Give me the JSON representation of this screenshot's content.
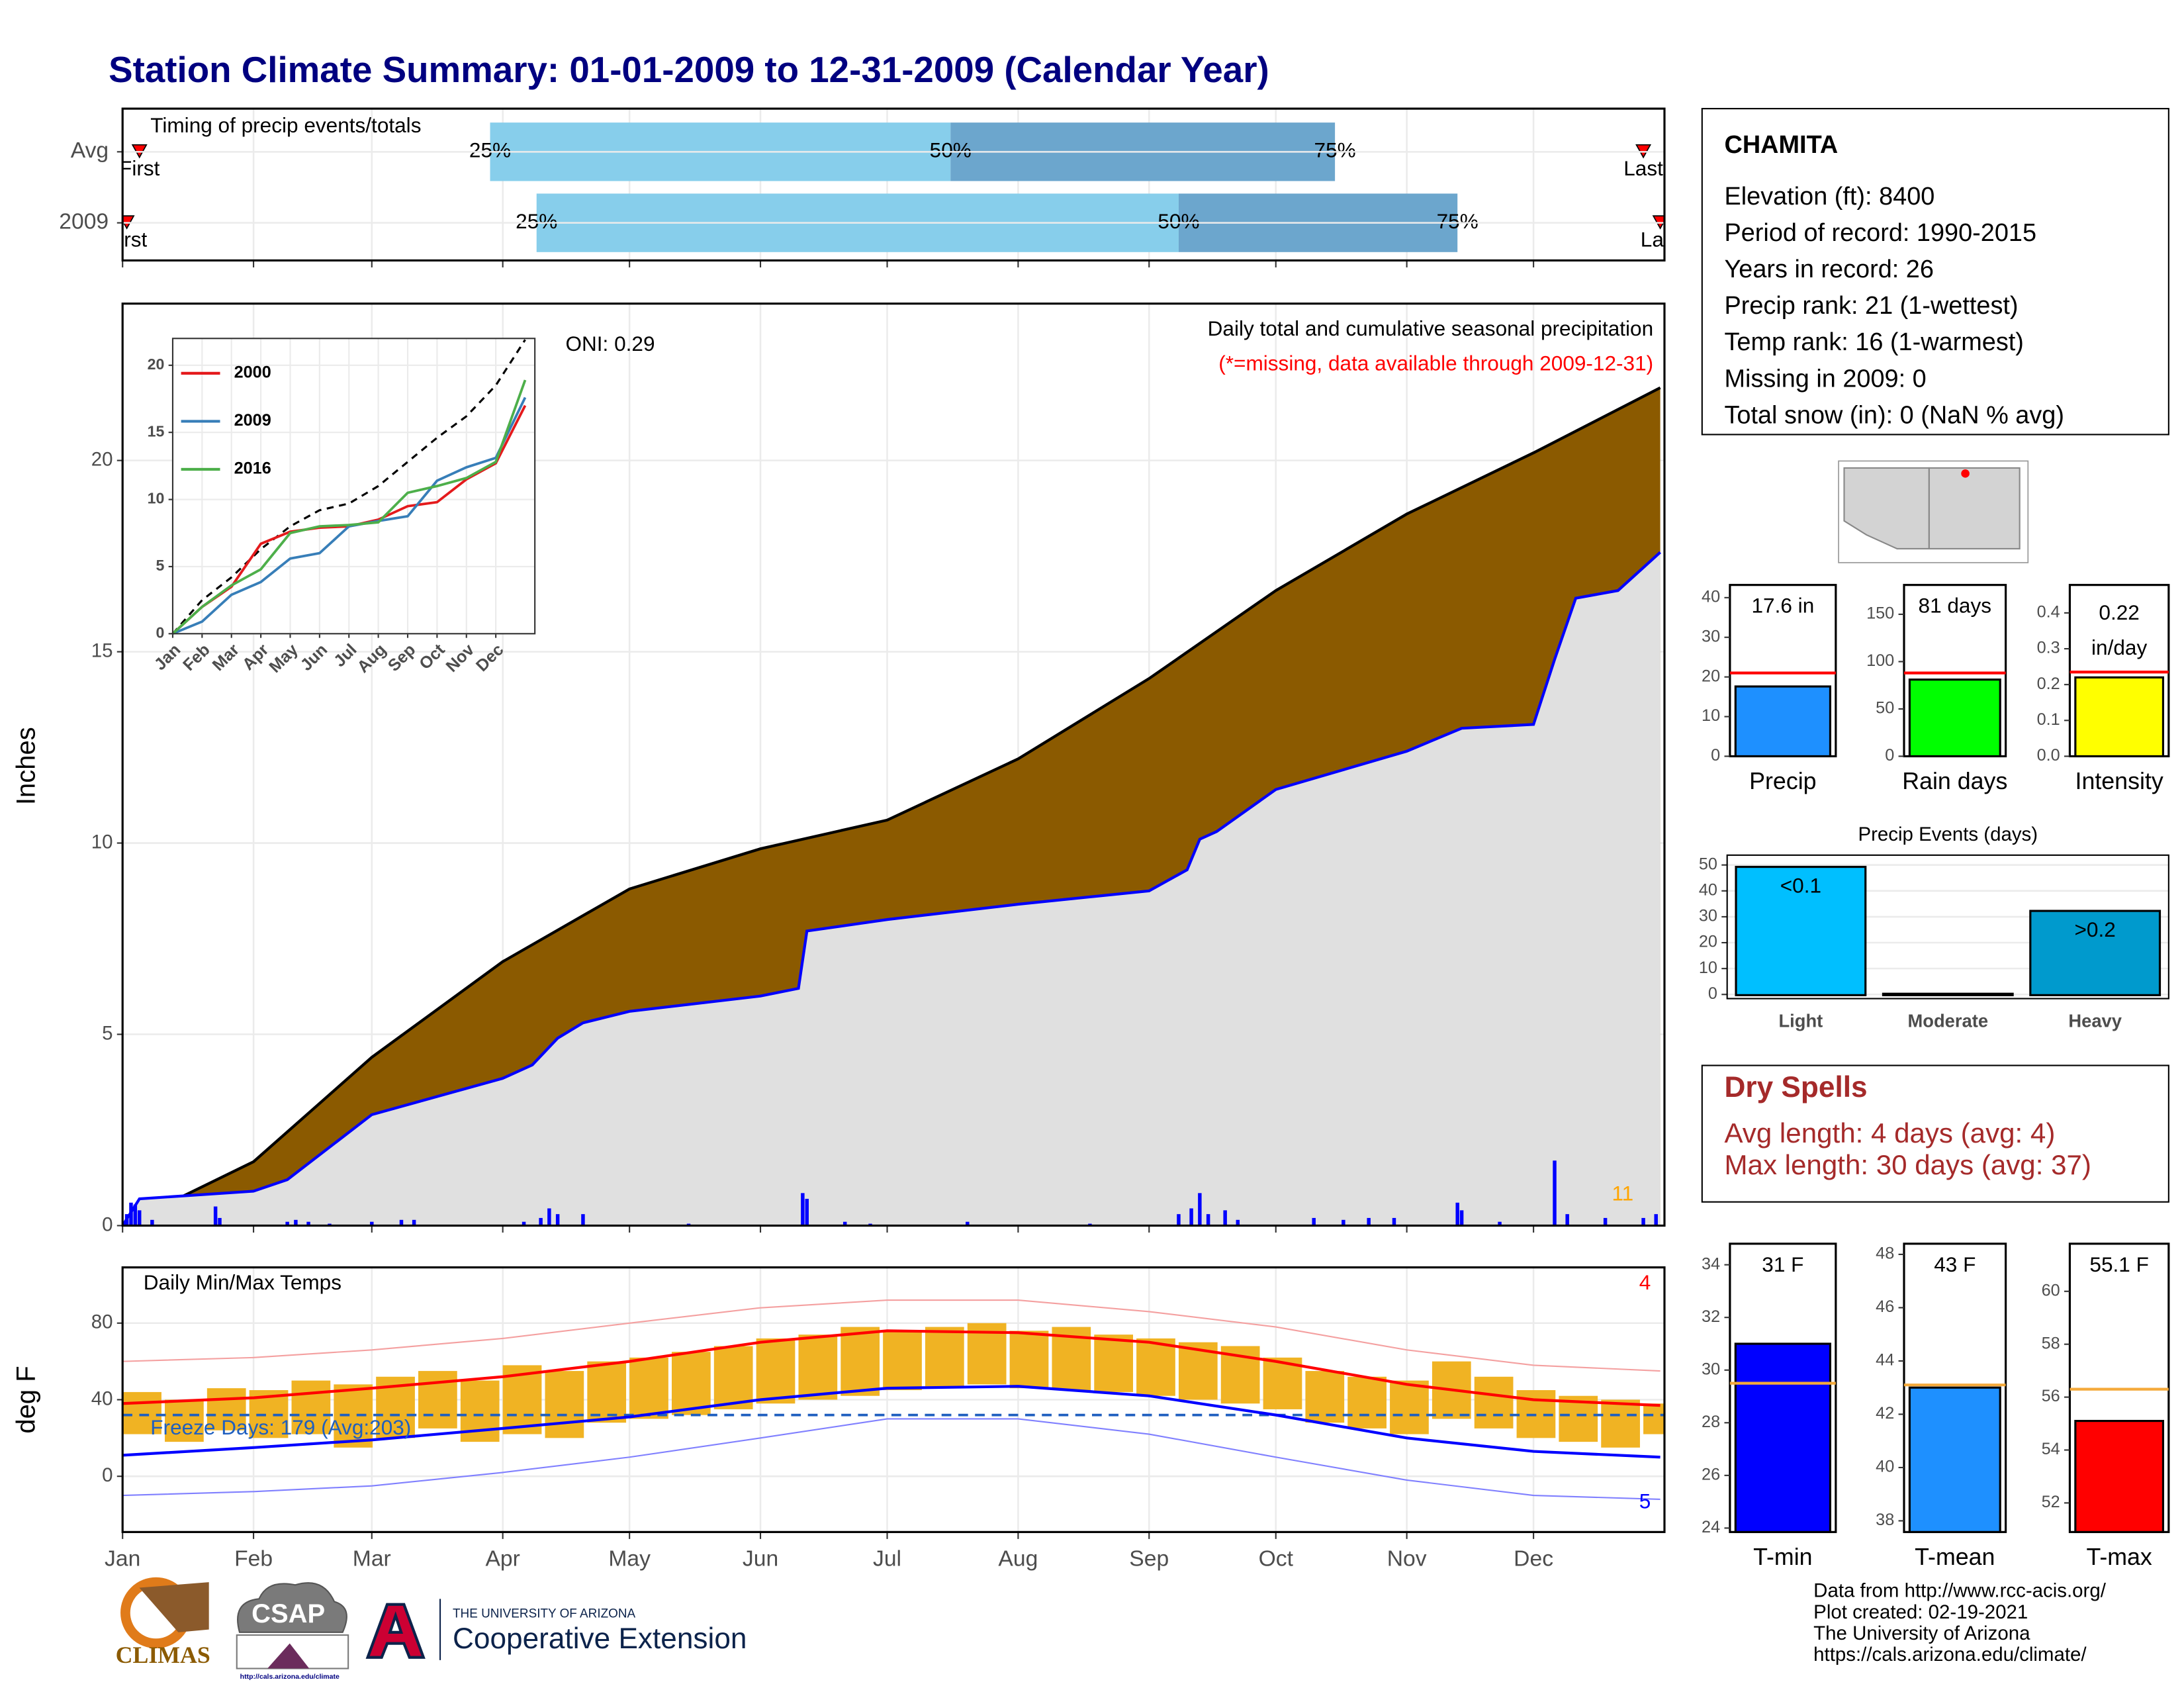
{
  "title": "Station Climate Summary: 01-01-2009 to 12-31-2009 (Calendar Year)",
  "chart_data": [
    {
      "type": "timing",
      "label": "Timing of precip events/totals",
      "xlim": [
        1,
        366
      ],
      "colors": {
        "low": "#87ceeb",
        "high": "#6ca6cd",
        "marker": "#ff0000"
      },
      "rows": [
        {
          "name": "Avg",
          "first": 5,
          "last": 361,
          "q25": 88,
          "q50": 197,
          "q75": 288,
          "first_label": "First",
          "last_label": "Last",
          "q25_label": "25%",
          "q50_label": "50%",
          "q75_label": "75%"
        },
        {
          "name": "2009",
          "first": 2,
          "last": 365,
          "q25": 99,
          "q50": 251,
          "q75": 317,
          "first_label": "First",
          "last_label": "Last",
          "q25_label": "25%",
          "q50_label": "50%",
          "q75_label": "75%"
        }
      ]
    },
    {
      "type": "area",
      "ylabel": "Inches",
      "xlim": [
        1,
        366
      ],
      "ylim": [
        0,
        24.1
      ],
      "yticks": [
        0,
        5,
        10,
        15,
        20
      ],
      "grid": true,
      "note": "ONI: 0.29",
      "subtitle": "Daily total and cumulative seasonal precipitation",
      "missing_note": "(*=missing, data available through 2009-12-31)",
      "count_label": "11",
      "avg": {
        "color": "#8b5a00",
        "x": [
          1,
          32,
          60,
          91,
          121,
          152,
          182,
          213,
          244,
          274,
          305,
          335,
          365
        ],
        "values": [
          0,
          1.67,
          4.4,
          6.9,
          8.8,
          9.85,
          10.6,
          12.2,
          14.3,
          16.6,
          18.6,
          20.2,
          21.9
        ]
      },
      "cumulative": {
        "color": "#0000ff",
        "fill": "#e0e0e0",
        "x": [
          1,
          5,
          32,
          40,
          60,
          91,
          98,
          104,
          110,
          121,
          152,
          161,
          163,
          182,
          213,
          244,
          253,
          256,
          260,
          274,
          305,
          318,
          335,
          340,
          345,
          355,
          365
        ],
        "values": [
          0,
          0.7,
          0.9,
          1.2,
          2.9,
          3.85,
          4.2,
          4.9,
          5.3,
          5.6,
          6.0,
          6.2,
          7.7,
          8.0,
          8.4,
          8.75,
          9.3,
          10.1,
          10.3,
          11.4,
          12.4,
          13.0,
          13.1,
          14.8,
          16.4,
          16.6,
          17.6
        ]
      },
      "daily": {
        "color": "#0000ff",
        "x": [
          2,
          3,
          4,
          5,
          8,
          23,
          24,
          40,
          42,
          45,
          50,
          60,
          67,
          70,
          96,
          100,
          102,
          104,
          110,
          135,
          162,
          163,
          172,
          178,
          201,
          230,
          251,
          254,
          256,
          258,
          262,
          265,
          283,
          290,
          296,
          302,
          317,
          318,
          327,
          340,
          343,
          352,
          361,
          364
        ],
        "values": [
          0.3,
          0.6,
          0.55,
          0.4,
          0.15,
          0.5,
          0.2,
          0.1,
          0.15,
          0.1,
          0.05,
          0.1,
          0.15,
          0.15,
          0.1,
          0.2,
          0.45,
          0.3,
          0.3,
          0.05,
          0.85,
          0.7,
          0.1,
          0.05,
          0.1,
          0.05,
          0.3,
          0.45,
          0.85,
          0.3,
          0.4,
          0.15,
          0.2,
          0.15,
          0.2,
          0.2,
          0.6,
          0.4,
          0.1,
          1.7,
          0.3,
          0.2,
          0.2,
          0.3
        ]
      }
    },
    {
      "type": "line",
      "x": [
        1,
        2,
        3,
        4,
        5,
        6,
        7,
        8,
        9,
        10,
        11,
        12,
        13
      ],
      "xlim": [
        1,
        13.33
      ],
      "ylim": [
        0,
        22
      ],
      "yticks": [
        0,
        5,
        10,
        15,
        20
      ],
      "xticks": [
        {
          "value": 1,
          "label": "Jan"
        },
        {
          "value": 2,
          "label": "Feb"
        },
        {
          "value": 3,
          "label": "Mar"
        },
        {
          "value": 4,
          "label": "Apr"
        },
        {
          "value": 5,
          "label": "May"
        },
        {
          "value": 6,
          "label": "Jun"
        },
        {
          "value": 7,
          "label": "Jul"
        },
        {
          "value": 8,
          "label": "Aug"
        },
        {
          "value": 9,
          "label": "Sep"
        },
        {
          "value": 10,
          "label": "Oct"
        },
        {
          "value": 11,
          "label": "Nov"
        },
        {
          "value": 12,
          "label": "Dec"
        }
      ],
      "dashed_values": [
        0,
        2.5,
        4.2,
        6.3,
        8,
        9.2,
        9.7,
        11,
        12.8,
        14.6,
        16.2,
        18.5,
        21.9
      ],
      "series": [
        {
          "name": "2000",
          "color": "#e41a1c",
          "values": [
            0,
            2,
            3.5,
            6.7,
            7.6,
            7.9,
            8.0,
            8.5,
            9.5,
            9.8,
            11.5,
            12.7,
            17.0
          ]
        },
        {
          "name": "2009",
          "color": "#377eb8",
          "values": [
            0,
            0.9,
            2.9,
            3.85,
            5.6,
            6,
            8,
            8.4,
            8.75,
            11.4,
            12.4,
            13.1,
            17.6
          ]
        },
        {
          "name": "2016",
          "color": "#4daf4a",
          "values": [
            0,
            2,
            3.6,
            4.8,
            7.5,
            8,
            8.1,
            8.3,
            10.5,
            11,
            11.6,
            12.8,
            18.9
          ]
        }
      ]
    },
    {
      "type": "temps",
      "ylabel": "deg F",
      "label": "Daily Min/Max Temps",
      "freeze_label": "Freeze Days: 179 (Avg:203)",
      "high_count": "4",
      "low_count": "5",
      "xlim": [
        1,
        366
      ],
      "ylim": [
        -29.1,
        109.1
      ],
      "yticks": [
        0,
        40,
        80
      ],
      "xticks": [
        {
          "value": 1,
          "label": "Jan"
        },
        {
          "value": 32,
          "label": "Feb"
        },
        {
          "value": 60,
          "label": "Mar"
        },
        {
          "value": 91,
          "label": "Apr"
        },
        {
          "value": 121,
          "label": "May"
        },
        {
          "value": 152,
          "label": "Jun"
        },
        {
          "value": 182,
          "label": "Jul"
        },
        {
          "value": 213,
          "label": "Aug"
        },
        {
          "value": 244,
          "label": "Sep"
        },
        {
          "value": 274,
          "label": "Oct"
        },
        {
          "value": 305,
          "label": "Nov"
        },
        {
          "value": 335,
          "label": "Dec"
        }
      ],
      "freeze_line": 32,
      "colors": {
        "bars": "#f0b323",
        "avg_max": "#ff0000",
        "avg_min": "#0000ff",
        "record_max": "#f4a0a0",
        "record_min": "#8080ff",
        "freeze": "#1f5fbf"
      },
      "bar_x": [
        1,
        11,
        21,
        31,
        41,
        51,
        61,
        71,
        81,
        91,
        101,
        111,
        121,
        131,
        141,
        151,
        161,
        171,
        181,
        191,
        201,
        211,
        221,
        231,
        241,
        251,
        261,
        271,
        281,
        291,
        301,
        311,
        321,
        331,
        341,
        351,
        361
      ],
      "lows": [
        22,
        18,
        24,
        20,
        22,
        15,
        20,
        25,
        18,
        22,
        20,
        28,
        30,
        32,
        35,
        38,
        40,
        42,
        45,
        46,
        48,
        46,
        45,
        44,
        42,
        40,
        38,
        35,
        28,
        25,
        22,
        30,
        25,
        20,
        18,
        15,
        22
      ],
      "highs": [
        44,
        40,
        46,
        45,
        50,
        48,
        52,
        55,
        50,
        58,
        55,
        60,
        62,
        65,
        68,
        72,
        74,
        78,
        76,
        78,
        80,
        76,
        78,
        74,
        72,
        70,
        68,
        62,
        55,
        52,
        50,
        60,
        52,
        45,
        42,
        40,
        38
      ],
      "curve_x": [
        1,
        32,
        60,
        91,
        121,
        152,
        182,
        213,
        244,
        274,
        305,
        335,
        365
      ],
      "avg_max": [
        38,
        41,
        46,
        52,
        60,
        70,
        76,
        75,
        70,
        60,
        48,
        40,
        37
      ],
      "avg_min": [
        11,
        15,
        19,
        25,
        31,
        40,
        46,
        47,
        42,
        32,
        20,
        13,
        10
      ],
      "record_max": [
        60,
        62,
        66,
        72,
        80,
        88,
        92,
        92,
        86,
        78,
        66,
        58,
        55
      ],
      "record_min": [
        -10,
        -8,
        -5,
        2,
        10,
        20,
        30,
        30,
        22,
        10,
        -2,
        -10,
        -12
      ]
    },
    {
      "type": "summary-bar",
      "xlabel": "Precip",
      "value": 17.6,
      "value_label": "17.6 in",
      "avg": 21,
      "ylim": [
        0,
        43.2
      ],
      "yticks": [
        0,
        10,
        20,
        30,
        40
      ],
      "color": "#1e90ff",
      "avg_color": "#ff0000"
    },
    {
      "type": "summary-bar",
      "xlabel": "Rain days",
      "value": 81,
      "value_label": "81 days",
      "avg": 88,
      "ylim": [
        0,
        181
      ],
      "yticks": [
        0,
        50,
        100,
        150
      ],
      "color": "#00ff00",
      "avg_color": "#ff0000"
    },
    {
      "type": "summary-bar",
      "xlabel": "Intensity",
      "value": 0.22,
      "value_label": "0.22",
      "unit_label": "in/day",
      "avg": 0.235,
      "ylim": [
        0,
        0.478
      ],
      "yticks": [
        {
          "value": 0,
          "label": "0.0"
        },
        0.1,
        0.2,
        0.3,
        0.4
      ],
      "color": "#ffff00",
      "avg_color": "#ff0000"
    },
    {
      "type": "bar",
      "title": "Precip Events (days)",
      "categories": [
        "Light",
        "Moderate",
        "Heavy"
      ],
      "values": [
        49,
        0,
        32
      ],
      "bar_labels": [
        "<0.1",
        null,
        ">0.2"
      ],
      "colors": [
        "#00bfff",
        "#00bfff",
        "#009acd"
      ],
      "ylim": [
        -1.6,
        53.8
      ],
      "yticks": [
        0,
        10,
        20,
        30,
        40,
        50
      ],
      "grid": true
    },
    {
      "type": "summary-bar",
      "xlabel": "T-min",
      "value": 31,
      "value_label": "31 F",
      "avg": 29.5,
      "ylim": [
        23.85,
        34.8
      ],
      "yticks": [
        24,
        26,
        28,
        30,
        32,
        34
      ],
      "color": "#0000ff",
      "avg_color": "#f4a93a"
    },
    {
      "type": "summary-bar",
      "xlabel": "T-mean",
      "value": 43,
      "value_label": "43 F",
      "avg": 43.1,
      "ylim": [
        37.58,
        48.4
      ],
      "yticks": [
        38,
        40,
        42,
        44,
        46,
        48
      ],
      "color": "#1e90ff",
      "avg_color": "#f4a93a"
    },
    {
      "type": "summary-bar",
      "xlabel": "T-max",
      "value": 55.1,
      "value_label": "55.1 F",
      "avg": 56.3,
      "ylim": [
        50.9,
        61.8
      ],
      "yticks": [
        52,
        54,
        56,
        58,
        60
      ],
      "color": "#ff0000",
      "avg_color": "#f4a93a"
    }
  ],
  "station": {
    "name": "CHAMITA",
    "lines": [
      "Elevation (ft): 8400",
      "Period of record: 1990-2015",
      "Years in record: 26",
      "Precip rank: 21 (1-wettest)",
      "Temp rank: 16 (1-warmest)",
      "Missing in 2009: 0",
      "Total snow (in): 0 (NaN % avg)"
    ]
  },
  "dry_spells": {
    "title": "Dry Spells",
    "lines": [
      "Avg length: 4 days (avg: 4)",
      "Max length: 30 days (avg: 37)"
    ]
  },
  "footer": [
    "Data from http://www.rcc-acis.org/",
    "Plot created: 02-19-2021",
    "The University of Arizona",
    "https://cals.arizona.edu/climate/"
  ],
  "logos": {
    "climas": "CLIMAS",
    "csap": "CSAP",
    "csap_url": "http://cals.arizona.edu/climate",
    "ua_small": "THE UNIVERSITY OF ARIZONA",
    "ua_big": "Cooperative Extension"
  }
}
